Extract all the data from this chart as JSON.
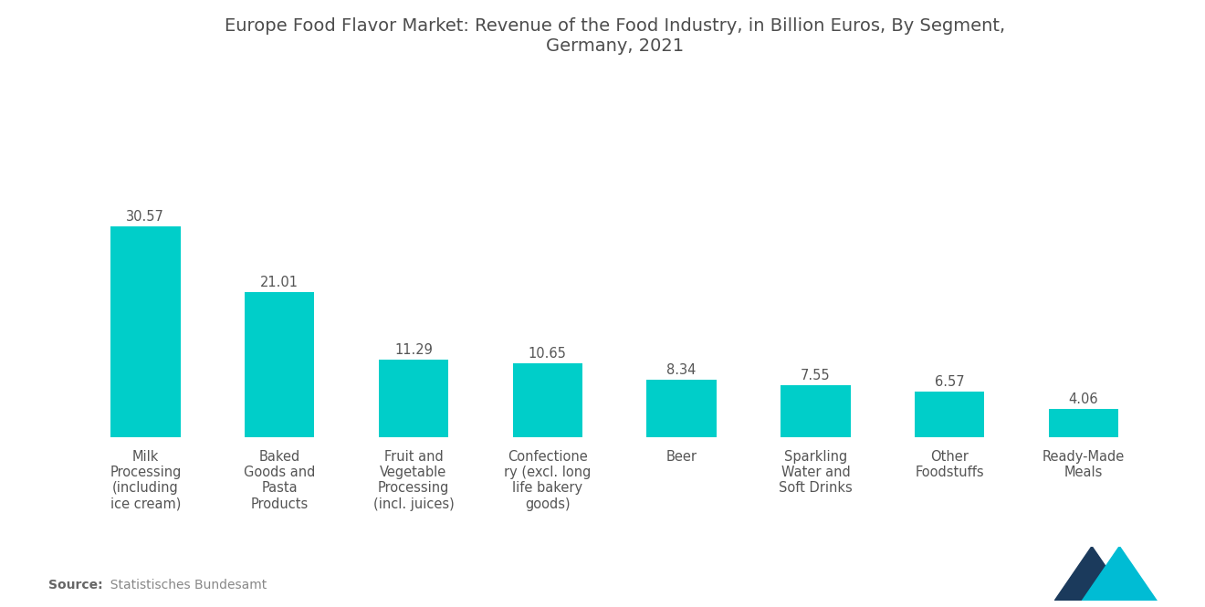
{
  "title": "Europe Food Flavor Market: Revenue of the Food Industry, in Billion Euros, By Segment,\nGermany, 2021",
  "categories": [
    "Milk\nProcessing\n(including\nice cream)",
    "Baked\nGoods and\nPasta\nProducts",
    "Fruit and\nVegetable\nProcessing\n(incl. juices)",
    "Confectione\nry (excl. long\nlife bakery\ngoods)",
    "Beer",
    "Sparkling\nWater and\nSoft Drinks",
    "Other\nFoodstuffs",
    "Ready-Made\nMeals"
  ],
  "values": [
    30.57,
    21.01,
    11.29,
    10.65,
    8.34,
    7.55,
    6.57,
    4.06
  ],
  "bar_color": "#00CEC9",
  "title_fontsize": 14,
  "label_fontsize": 10.5,
  "value_fontsize": 10.5,
  "source_bold": "Source:",
  "source_normal": "  Statistisches Bundesamt",
  "background_color": "#ffffff",
  "ylim": [
    0,
    52
  ],
  "bar_width": 0.52,
  "logo_tri1_color": "#1B3A5C",
  "logo_tri2_color": "#00BCD4"
}
